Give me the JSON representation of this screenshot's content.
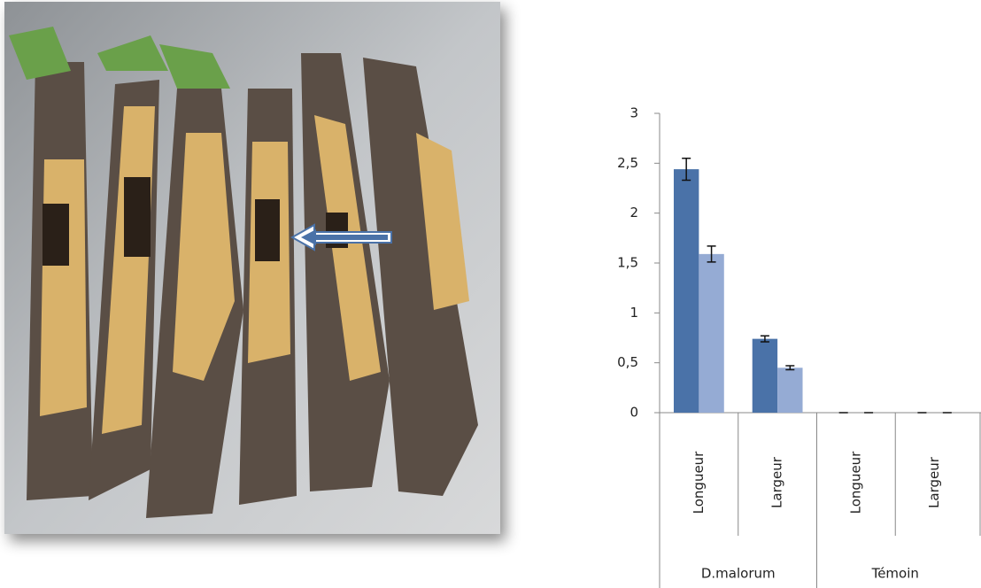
{
  "chart_data": {
    "type": "bar",
    "categories": [
      "Longueur",
      "Largeur",
      "Longueur",
      "Largeur"
    ],
    "groups": [
      "D.malorum",
      "Témoin"
    ],
    "series": [
      {
        "color": "#4a72a8",
        "values": [
          2.44,
          0.74,
          0,
          0
        ],
        "errors": [
          0.11,
          0.03,
          0,
          0
        ]
      },
      {
        "color": "#95abd4",
        "values": [
          1.59,
          0.45,
          0,
          0
        ],
        "errors": [
          0.08,
          0.02,
          0,
          0
        ]
      }
    ],
    "ylim": [
      0,
      3
    ],
    "yticks": [
      0,
      {
        "value": 0.5,
        "label": "0,5"
      },
      1,
      {
        "value": 1.5,
        "label": "1,5"
      },
      2,
      {
        "value": 2.5,
        "label": "2,5"
      },
      3
    ]
  }
}
